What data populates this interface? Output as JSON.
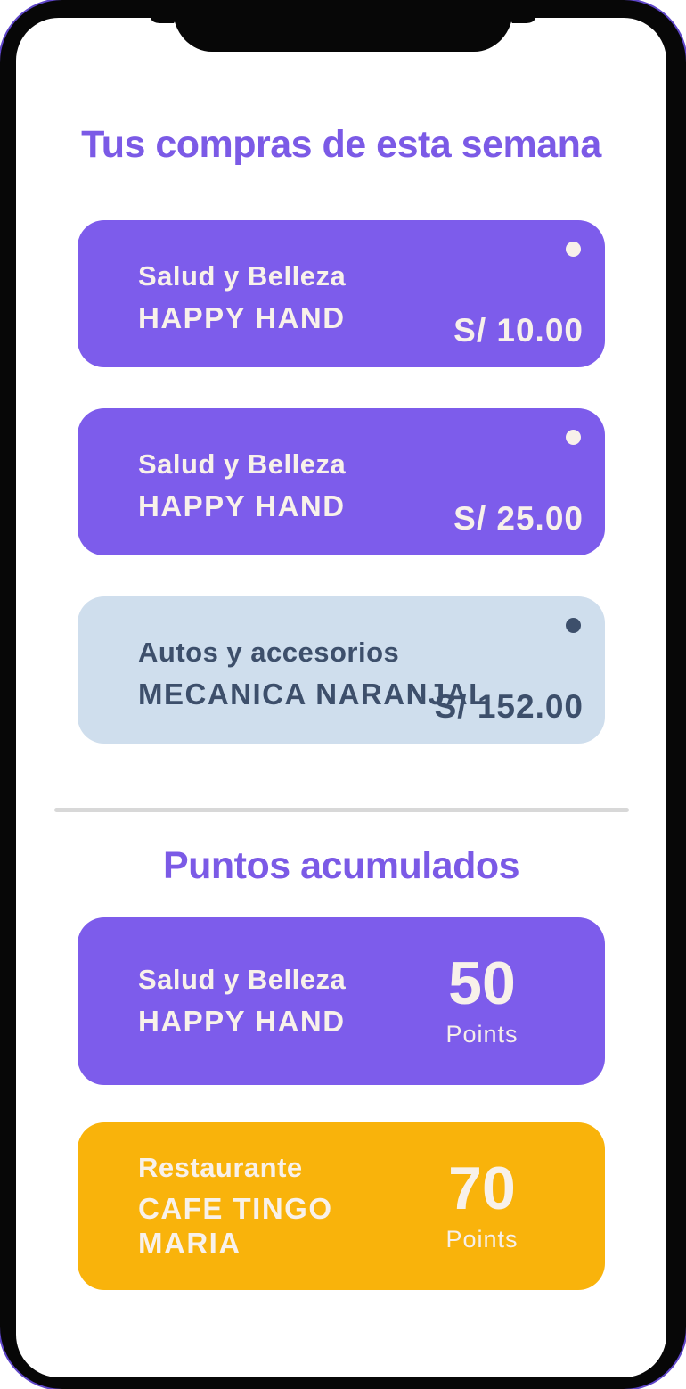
{
  "purchases": {
    "title": "Tus compras de esta semana",
    "cards": [
      {
        "category": "Salud y Belleza",
        "merchant": "HAPPY HAND",
        "amount": "S/ 10.00"
      },
      {
        "category": "Salud y Belleza",
        "merchant": "HAPPY HAND",
        "amount": "S/ 25.00"
      },
      {
        "category": "Autos y accesorios",
        "merchant": "MECANICA NARANJAL",
        "amount": "S/ 152.00"
      }
    ]
  },
  "points": {
    "title": "Puntos acumulados",
    "cards": [
      {
        "category": "Salud y Belleza",
        "merchant": "HAPPY HAND",
        "value": "50",
        "label": "Points"
      },
      {
        "category": "Restaurante",
        "merchant": "CAFE TINGO MARIA",
        "value": "70",
        "label": "Points"
      }
    ]
  },
  "colors": {
    "accent_purple": "#7d5ceb",
    "title_purple": "#7b5ae6",
    "accent_orange": "#f9b30b",
    "card_light_blue": "#cfdeed",
    "navy_text": "#3d4f6b",
    "offwhite_text": "#f8f1ea",
    "divider_gray": "#d8d8d8",
    "frame_black": "#070707"
  }
}
